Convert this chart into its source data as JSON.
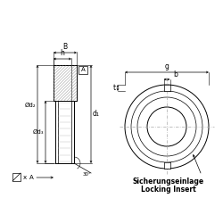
{
  "bg_color": "#ffffff",
  "line_color": "#000000",
  "dash_color": "#aaaaaa",
  "fig_width": 2.5,
  "fig_height": 2.5,
  "dpi": 100,
  "text_sicherung": "Sicherungseinlage",
  "text_locking": "Locking Insert",
  "label_B": "B",
  "label_h": "h",
  "label_A_box": "A",
  "label_d2": "Ød₂",
  "label_d3": "Ød₃",
  "label_d1": "d₁",
  "label_x": "x",
  "label_30": "30°",
  "label_g": "g",
  "label_b": "b",
  "label_t": "t"
}
